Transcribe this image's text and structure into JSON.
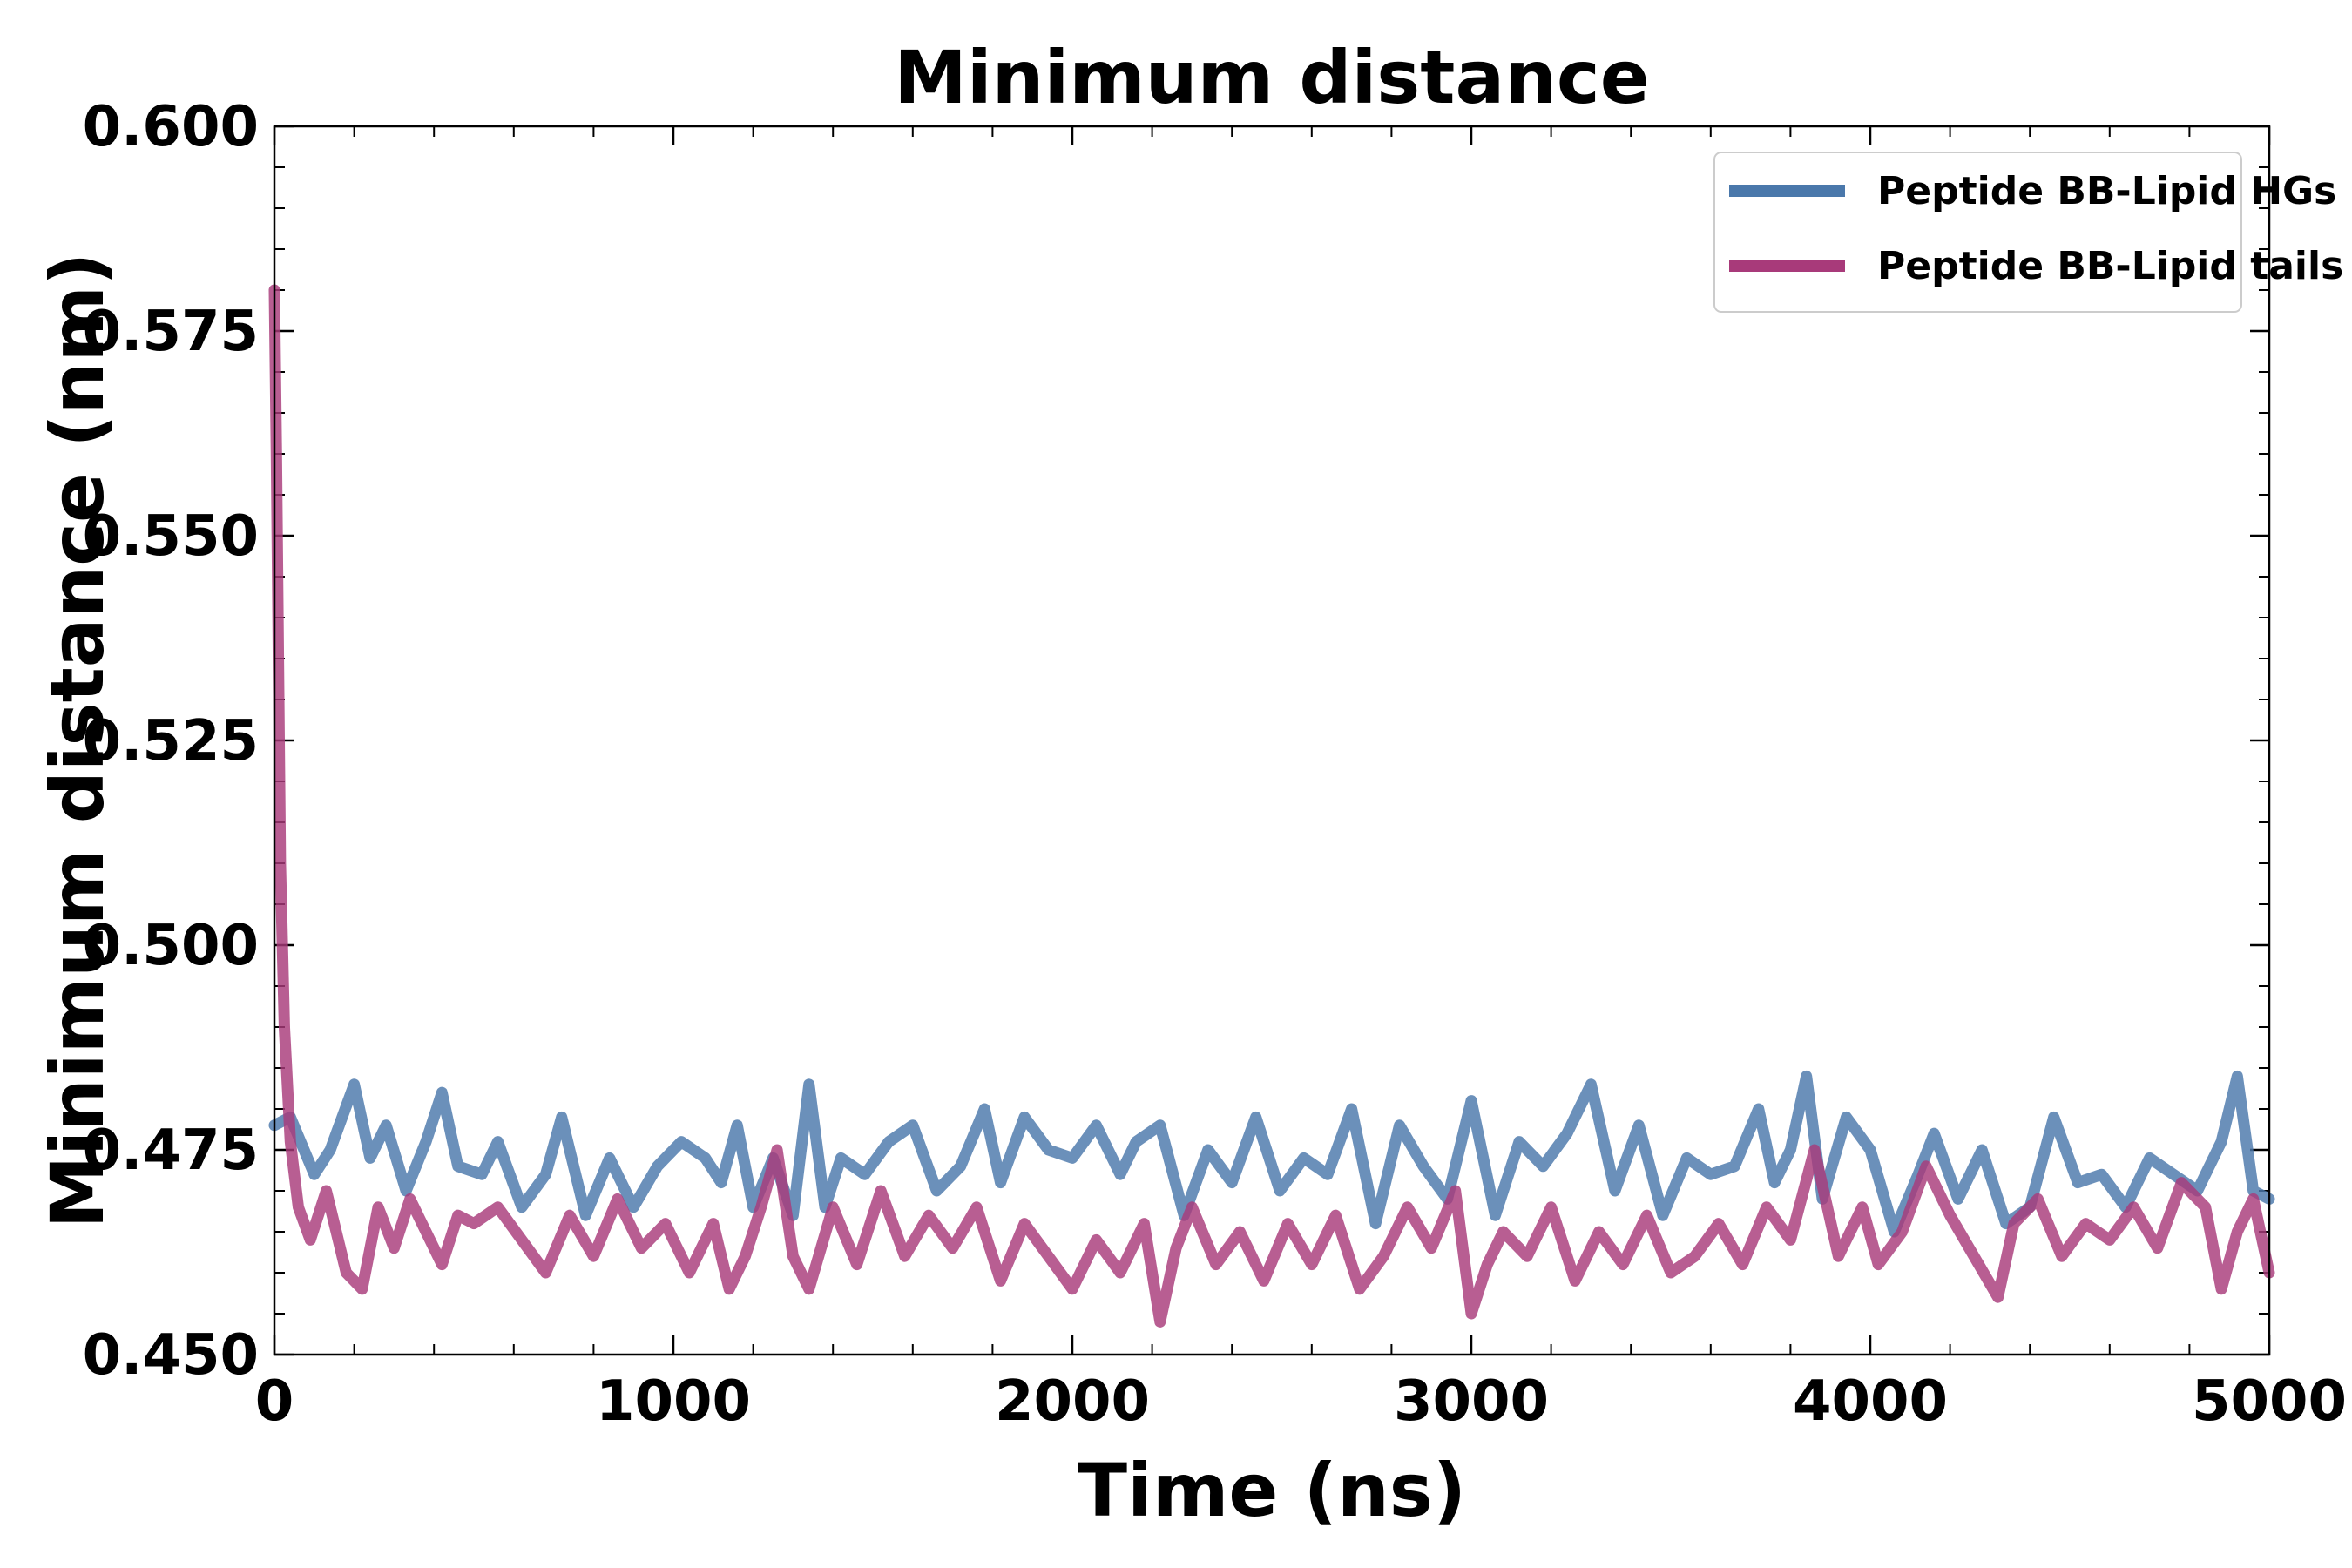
{
  "chart_data": {
    "type": "line",
    "title": "Minimum distance",
    "xlabel": "Time (ns)",
    "ylabel": "Minimum distance (nm)",
    "xlim": [
      0,
      5000
    ],
    "ylim": [
      0.45,
      0.6
    ],
    "xticks": [
      "0",
      "1000",
      "2000",
      "3000",
      "4000",
      "5000"
    ],
    "yticks": [
      "0.450",
      "0.475",
      "0.500",
      "0.525",
      "0.550",
      "0.575",
      "0.600"
    ],
    "grid": false,
    "legend": "top-right",
    "series": [
      {
        "name": "Peptide BB-Lipid HGs",
        "color": "#4a78ab",
        "x": [
          0,
          40,
          100,
          140,
          200,
          240,
          280,
          330,
          380,
          420,
          460,
          520,
          560,
          620,
          680,
          720,
          780,
          840,
          900,
          960,
          1020,
          1080,
          1120,
          1160,
          1200,
          1250,
          1300,
          1340,
          1380,
          1420,
          1480,
          1540,
          1600,
          1660,
          1720,
          1780,
          1820,
          1880,
          1940,
          2000,
          2060,
          2120,
          2160,
          2220,
          2280,
          2340,
          2400,
          2460,
          2520,
          2580,
          2640,
          2700,
          2760,
          2820,
          2880,
          2940,
          3000,
          3060,
          3120,
          3180,
          3240,
          3300,
          3360,
          3420,
          3480,
          3540,
          3600,
          3660,
          3720,
          3760,
          3800,
          3840,
          3880,
          3940,
          4000,
          4060,
          4120,
          4160,
          4220,
          4280,
          4340,
          4400,
          4460,
          4520,
          4580,
          4640,
          4700,
          4760,
          4820,
          4880,
          4920,
          4960,
          5000
        ],
        "y": [
          0.478,
          0.479,
          0.472,
          0.475,
          0.483,
          0.474,
          0.478,
          0.47,
          0.476,
          0.482,
          0.473,
          0.472,
          0.476,
          0.468,
          0.472,
          0.479,
          0.467,
          0.474,
          0.468,
          0.473,
          0.476,
          0.474,
          0.471,
          0.478,
          0.468,
          0.474,
          0.467,
          0.483,
          0.468,
          0.474,
          0.472,
          0.476,
          0.478,
          0.47,
          0.473,
          0.48,
          0.471,
          0.479,
          0.475,
          0.474,
          0.478,
          0.472,
          0.476,
          0.478,
          0.467,
          0.475,
          0.471,
          0.479,
          0.47,
          0.474,
          0.472,
          0.48,
          0.466,
          0.478,
          0.473,
          0.469,
          0.481,
          0.467,
          0.476,
          0.473,
          0.477,
          0.483,
          0.47,
          0.478,
          0.467,
          0.474,
          0.472,
          0.473,
          0.48,
          0.471,
          0.475,
          0.484,
          0.469,
          0.479,
          0.475,
          0.465,
          0.472,
          0.477,
          0.469,
          0.475,
          0.466,
          0.468,
          0.479,
          0.471,
          0.472,
          0.468,
          0.474,
          0.472,
          0.47,
          0.476,
          0.484,
          0.47,
          0.469
        ]
      },
      {
        "name": "Peptide BB-Lipid tails",
        "color": "#a83a7a",
        "x": [
          0,
          5,
          15,
          25,
          40,
          60,
          90,
          130,
          180,
          220,
          260,
          300,
          340,
          380,
          420,
          460,
          500,
          560,
          620,
          680,
          740,
          800,
          860,
          920,
          980,
          1040,
          1100,
          1140,
          1180,
          1220,
          1260,
          1300,
          1340,
          1400,
          1460,
          1520,
          1580,
          1640,
          1700,
          1760,
          1820,
          1880,
          1940,
          2000,
          2060,
          2120,
          2180,
          2220,
          2260,
          2300,
          2360,
          2420,
          2480,
          2540,
          2600,
          2660,
          2720,
          2780,
          2840,
          2900,
          2960,
          3000,
          3040,
          3080,
          3140,
          3200,
          3260,
          3320,
          3380,
          3440,
          3500,
          3560,
          3620,
          3680,
          3740,
          3800,
          3860,
          3920,
          3980,
          4020,
          4080,
          4140,
          4200,
          4260,
          4320,
          4360,
          4420,
          4480,
          4540,
          4600,
          4660,
          4720,
          4780,
          4840,
          4880,
          4920,
          4960,
          5000
        ],
        "y": [
          0.58,
          0.56,
          0.51,
          0.49,
          0.476,
          0.468,
          0.464,
          0.47,
          0.46,
          0.458,
          0.468,
          0.463,
          0.469,
          0.465,
          0.461,
          0.467,
          0.466,
          0.468,
          0.464,
          0.46,
          0.467,
          0.462,
          0.469,
          0.463,
          0.466,
          0.46,
          0.466,
          0.458,
          0.462,
          0.468,
          0.475,
          0.462,
          0.458,
          0.468,
          0.461,
          0.47,
          0.462,
          0.467,
          0.463,
          0.468,
          0.459,
          0.466,
          0.462,
          0.458,
          0.464,
          0.46,
          0.466,
          0.454,
          0.463,
          0.468,
          0.461,
          0.465,
          0.459,
          0.466,
          0.461,
          0.467,
          0.458,
          0.462,
          0.468,
          0.463,
          0.47,
          0.455,
          0.461,
          0.465,
          0.462,
          0.468,
          0.459,
          0.465,
          0.461,
          0.467,
          0.46,
          0.462,
          0.466,
          0.461,
          0.468,
          0.464,
          0.475,
          0.462,
          0.468,
          0.461,
          0.465,
          0.473,
          0.467,
          0.462,
          0.457,
          0.466,
          0.469,
          0.462,
          0.466,
          0.464,
          0.468,
          0.463,
          0.471,
          0.468,
          0.458,
          0.465,
          0.469,
          0.46
        ]
      }
    ]
  }
}
